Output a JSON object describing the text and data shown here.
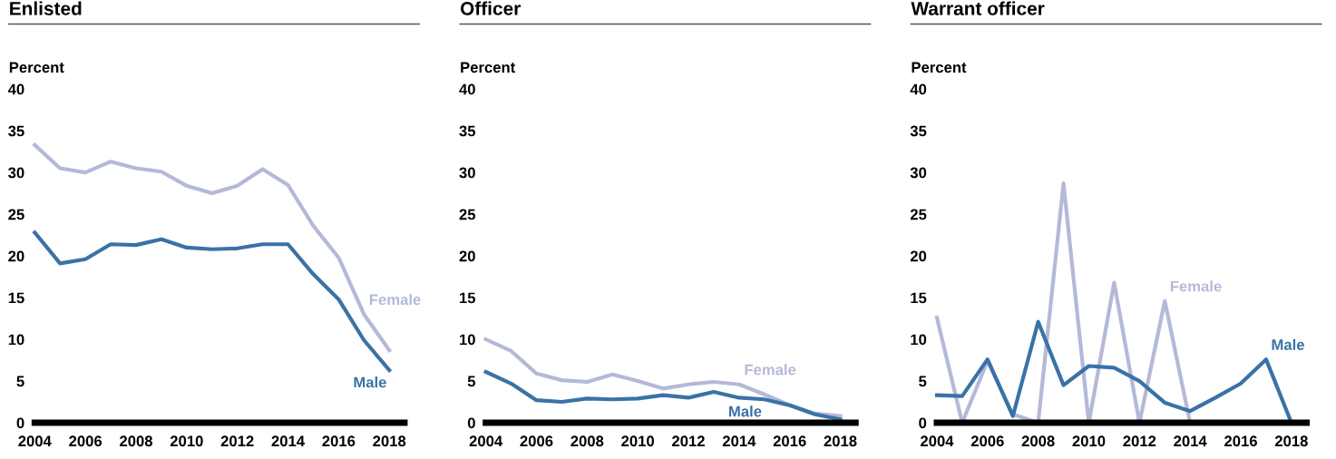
{
  "chart_data": [
    {
      "type": "line",
      "title": "Enlisted",
      "ylabel": "Percent",
      "x": [
        2004,
        2005,
        2006,
        2007,
        2008,
        2009,
        2010,
        2011,
        2012,
        2013,
        2014,
        2015,
        2016,
        2017,
        2018
      ],
      "series": [
        {
          "color": "#b4b9d9",
          "values": [
            33.3,
            30.5,
            30.0,
            31.3,
            30.5,
            30.1,
            28.4,
            27.5,
            28.4,
            30.4,
            28.5,
            23.6,
            19.8,
            13.0,
            8.7
          ]
        },
        {
          "color": "#3a72a6",
          "values": [
            22.8,
            19.1,
            19.6,
            21.4,
            21.3,
            22.0,
            21.0,
            20.8,
            20.9,
            21.4,
            21.4,
            17.8,
            14.8,
            9.9,
            6.3
          ]
        }
      ],
      "annotations": [
        {
          "text": "Female",
          "x": 2017,
          "y": 13.0
        },
        {
          "text": "Male",
          "x": 2018,
          "y": 6.3
        }
      ],
      "xlim": [
        2004,
        2018.6
      ],
      "xticks": [
        2004,
        2006,
        2008,
        2010,
        2012,
        2014,
        2016,
        2018
      ],
      "ylim": [
        0,
        40
      ],
      "yticks": [
        0,
        5,
        10,
        15,
        20,
        25,
        30,
        35,
        40
      ],
      "grid": false,
      "legend": false,
      "marker": "none",
      "line_style": "solid"
    },
    {
      "type": "line",
      "title": "Officer",
      "ylabel": "Percent",
      "x": [
        2004,
        2005,
        2006,
        2007,
        2008,
        2009,
        2010,
        2011,
        2012,
        2013,
        2014,
        2015,
        2016,
        2017,
        2018
      ],
      "series": [
        {
          "color": "#b4b9d9",
          "values": [
            10.0,
            8.6,
            5.9,
            5.1,
            4.9,
            5.8,
            5.0,
            4.1,
            4.6,
            4.9,
            4.6,
            3.4,
            2.1,
            1.1,
            0.8
          ]
        },
        {
          "color": "#3a72a6",
          "values": [
            6.1,
            4.7,
            2.7,
            2.5,
            2.9,
            2.8,
            2.9,
            3.3,
            3.0,
            3.7,
            3.0,
            2.8,
            2.1,
            1.0,
            0.4
          ]
        }
      ],
      "annotations": [
        {
          "text": "Female",
          "x": 2014,
          "y": 4.6
        },
        {
          "text": "Male",
          "x": 2015,
          "y": 2.8
        }
      ],
      "xlim": [
        2004,
        2018.6
      ],
      "xticks": [
        2004,
        2006,
        2008,
        2010,
        2012,
        2014,
        2016,
        2018
      ],
      "ylim": [
        0,
        40
      ],
      "yticks": [
        0,
        5,
        10,
        15,
        20,
        25,
        30,
        35,
        40
      ],
      "grid": false,
      "legend": false,
      "marker": "none",
      "line_style": "solid"
    },
    {
      "type": "line",
      "title": "Warrant officer",
      "ylabel": "Percent",
      "x": [
        2004,
        2005,
        2006,
        2007,
        2008,
        2009,
        2010,
        2011,
        2012,
        2013,
        2014,
        2015,
        2016,
        2017,
        2018
      ],
      "series": [
        {
          "color": "#b4b9d9",
          "values": [
            12.6,
            0,
            7.4,
            1.0,
            0,
            28.7,
            0,
            16.8,
            0,
            14.6,
            0,
            null,
            null,
            null,
            null
          ]
        },
        {
          "color": "#3a72a6",
          "values": [
            3.3,
            3.2,
            7.6,
            0.8,
            12.1,
            4.5,
            6.8,
            6.6,
            5.0,
            2.4,
            1.4,
            3.0,
            4.7,
            7.6,
            0
          ]
        }
      ],
      "annotations": [
        {
          "text": "Female",
          "x": 2013,
          "y": 14.6
        },
        {
          "text": "Male",
          "x": 2017,
          "y": 7.6
        }
      ],
      "xlim": [
        2004,
        2018.6
      ],
      "xticks": [
        2004,
        2006,
        2008,
        2010,
        2012,
        2014,
        2016,
        2018
      ],
      "ylim": [
        0,
        40
      ],
      "yticks": [
        0,
        5,
        10,
        15,
        20,
        25,
        30,
        35,
        40
      ],
      "grid": false,
      "legend": false,
      "marker": "none",
      "line_style": "solid"
    }
  ]
}
